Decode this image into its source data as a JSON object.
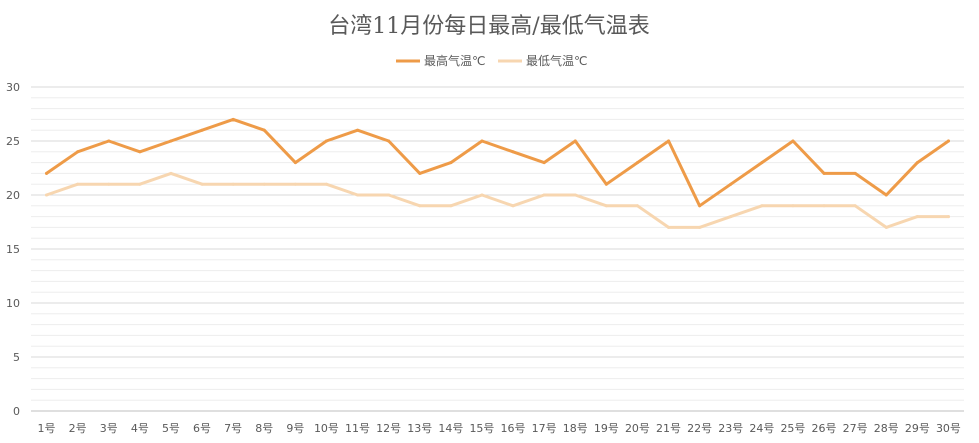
{
  "chart_data": {
    "type": "line",
    "title": "台湾11月份每日最高/最低气温表",
    "categories": [
      "1号",
      "2号",
      "3号",
      "4号",
      "5号",
      "6号",
      "7号",
      "8号",
      "9号",
      "10号",
      "11号",
      "12号",
      "13号",
      "14号",
      "15号",
      "16号",
      "17号",
      "18号",
      "19号",
      "20号",
      "21号",
      "22号",
      "23号",
      "24号",
      "25号",
      "26号",
      "27号",
      "28号",
      "29号",
      "30号"
    ],
    "series": [
      {
        "name": "最高气温℃",
        "color": "#ee9b48",
        "values": [
          22,
          24,
          25,
          24,
          25,
          26,
          27,
          26,
          23,
          25,
          26,
          25,
          22,
          23,
          25,
          24,
          23,
          25,
          21,
          23,
          25,
          19,
          21,
          23,
          25,
          22,
          22,
          20,
          23,
          25
        ]
      },
      {
        "name": "最低气温℃",
        "color": "#f7d6b0",
        "values": [
          20,
          21,
          21,
          21,
          22,
          21,
          21,
          21,
          21,
          21,
          20,
          20,
          19,
          19,
          20,
          19,
          20,
          20,
          19,
          19,
          17,
          17,
          18,
          19,
          19,
          19,
          19,
          17,
          18,
          18
        ]
      }
    ],
    "ylim": [
      0,
      30
    ],
    "yticks": [
      0,
      5,
      10,
      15,
      20,
      25,
      30
    ],
    "xlabel": "",
    "ylabel": "",
    "grid": true,
    "legend_position": "top-center"
  }
}
